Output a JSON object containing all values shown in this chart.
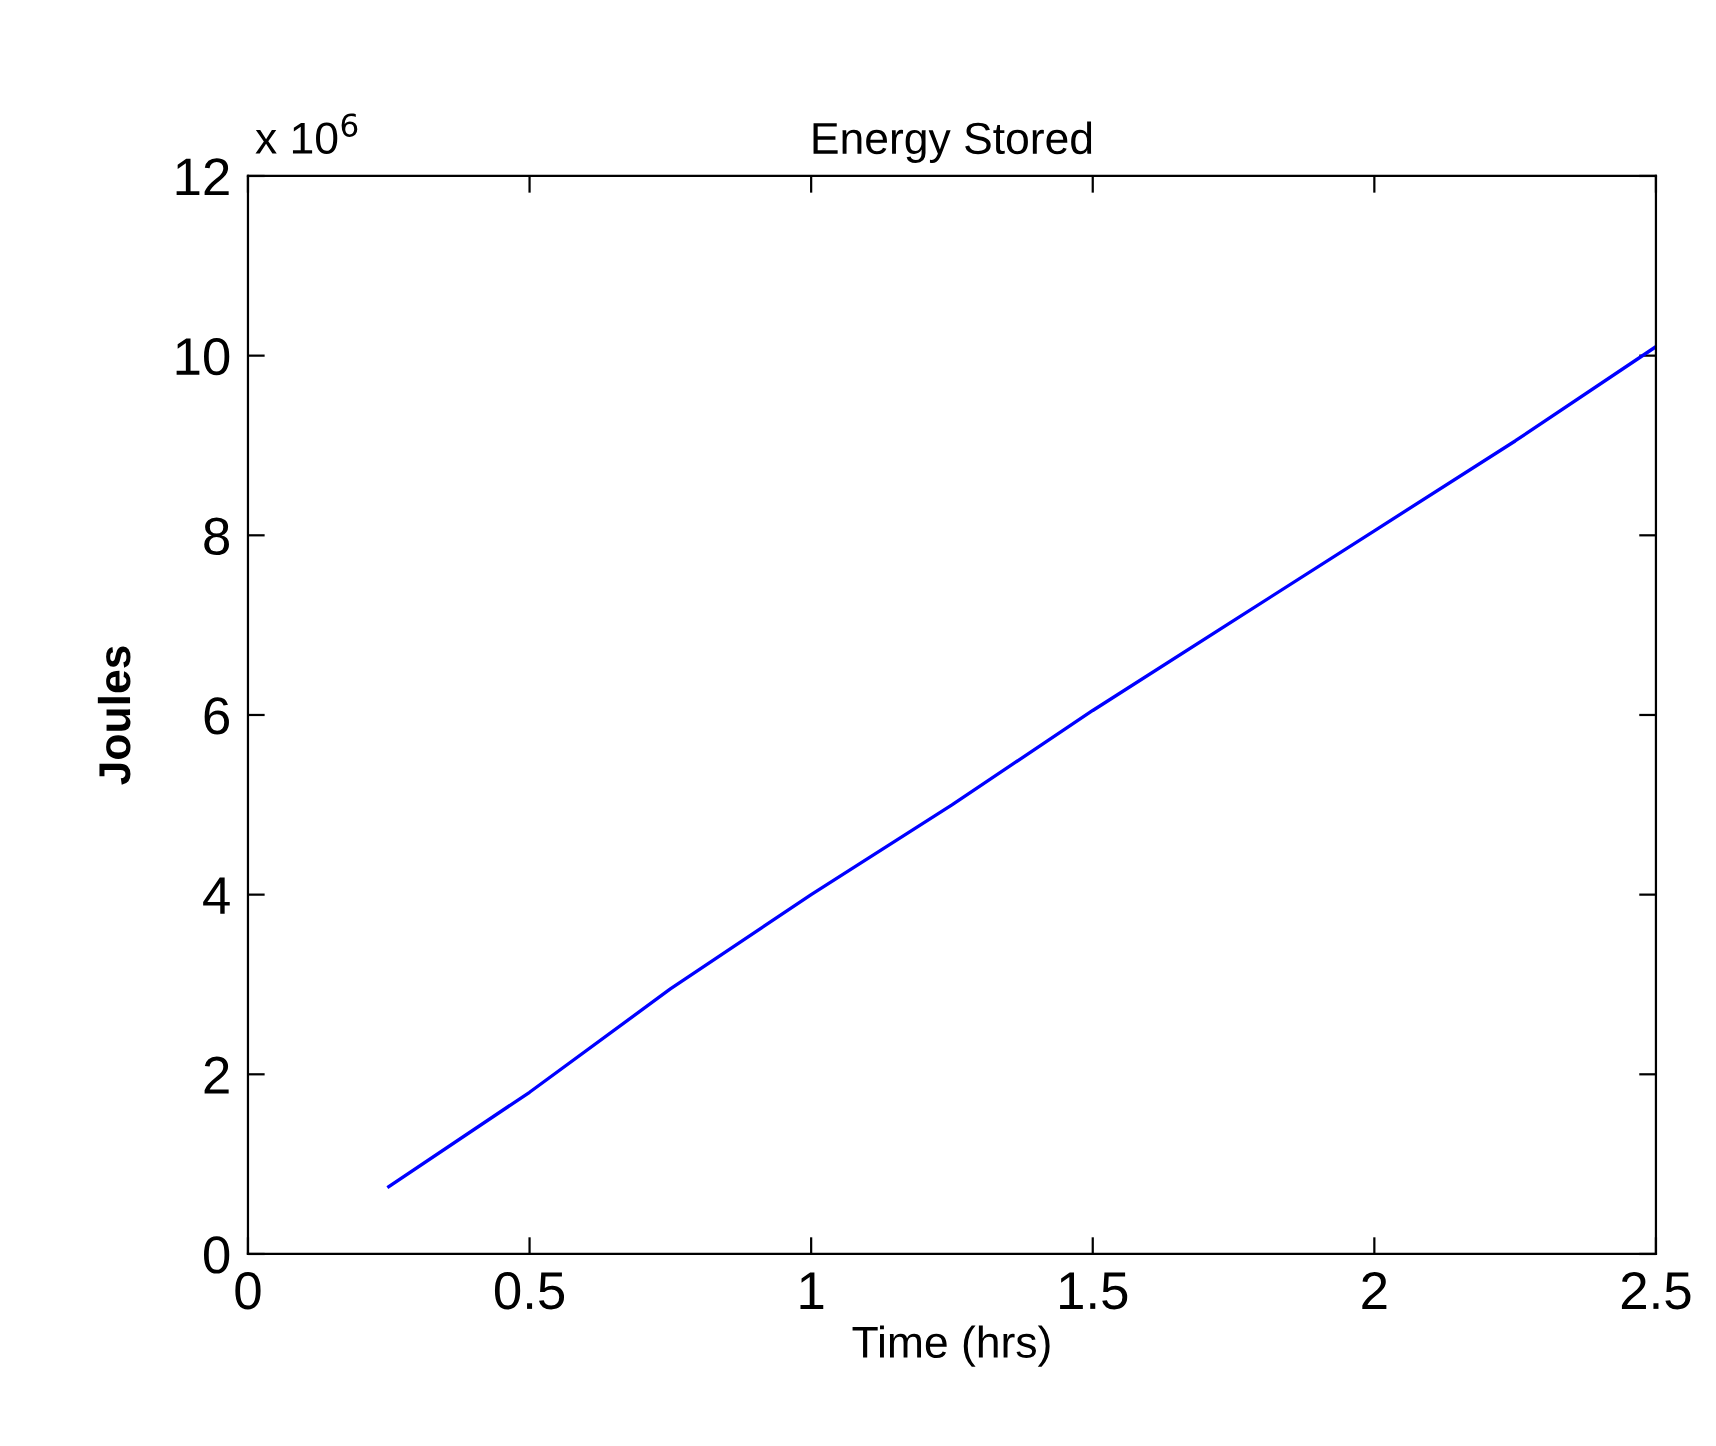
{
  "chart_data": {
    "type": "line",
    "title": "Energy Stored",
    "xlabel": "Time (hrs)",
    "ylabel": "Joules",
    "annotations": [
      "x 10$^{6}$"
    ],
    "x": [
      0.25,
      0.5,
      0.75,
      1.0,
      1.25,
      1.5,
      1.75,
      2.0,
      2.25,
      2.5
    ],
    "series": [
      {
        "color": "#0000ff",
        "values": [
          0.75,
          1.8,
          2.95,
          4.0,
          5.0,
          6.05,
          7.05,
          8.05,
          9.05,
          10.1
        ]
      }
    ],
    "xlim": [
      0,
      2.5
    ],
    "xticks": [
      0,
      0.5,
      1,
      1.5,
      2,
      2.5
    ],
    "ylim": [
      0,
      12
    ],
    "yticks": [
      0,
      2,
      4,
      6,
      8,
      10,
      12
    ],
    "grid": false,
    "legend": false,
    "marker": "none",
    "line_style": "solid"
  }
}
